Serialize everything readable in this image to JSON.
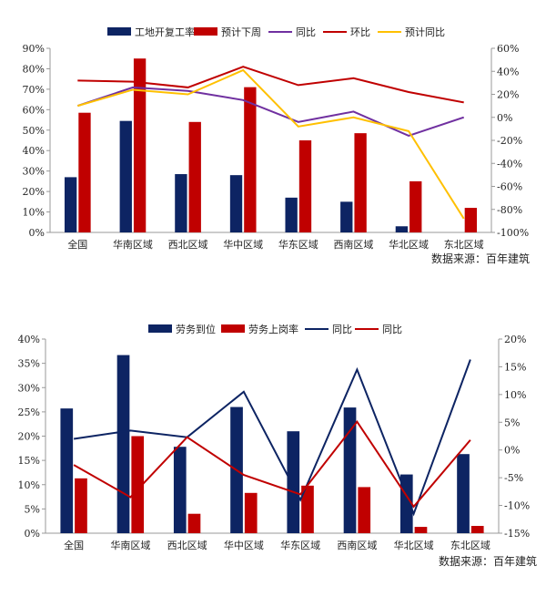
{
  "chart_data": [
    {
      "type": "bar",
      "categories": [
        "全国",
        "华南区域",
        "西北区域",
        "华中区域",
        "华东区域",
        "西南区域",
        "华北区域",
        "东北区域"
      ],
      "series": [
        {
          "name": "工地开复工率",
          "kind": "bar",
          "axis": "left",
          "color": "#0d2463",
          "values": [
            27,
            54.5,
            28.5,
            28,
            17,
            15,
            3,
            0
          ]
        },
        {
          "name": "预计下周",
          "kind": "bar",
          "axis": "left",
          "color": "#c00000",
          "values": [
            58.5,
            85,
            54,
            71,
            45,
            48.5,
            25,
            12
          ]
        },
        {
          "name": "同比",
          "kind": "line",
          "axis": "right",
          "color": "#7030a0",
          "values": [
            10,
            26,
            23,
            15,
            -4,
            5,
            -16,
            0
          ]
        },
        {
          "name": "环比",
          "kind": "line",
          "axis": "right",
          "color": "#c00000",
          "values": [
            32,
            31,
            26,
            44,
            28,
            34,
            22,
            13
          ]
        },
        {
          "name": "预计同比",
          "kind": "line",
          "axis": "right",
          "color": "#ffc000",
          "values": [
            10,
            24,
            20,
            41,
            -8,
            0,
            -12,
            -88
          ]
        }
      ],
      "ylim": [
        0,
        90
      ],
      "yticks": [
        "0%",
        "10%",
        "20%",
        "30%",
        "40%",
        "50%",
        "60%",
        "70%",
        "80%",
        "90%"
      ],
      "y2lim": [
        -100,
        60
      ],
      "y2ticks": [
        "-100%",
        "-80%",
        "-60%",
        "-40%",
        "-20%",
        "0%",
        "20%",
        "40%",
        "60%"
      ],
      "legend": "top",
      "source": "数据来源：百年建筑"
    },
    {
      "type": "bar",
      "categories": [
        "全国",
        "华南区域",
        "西北区域",
        "华中区域",
        "华东区域",
        "西南区域",
        "华北区域",
        "东北区域"
      ],
      "series": [
        {
          "name": "劳务到位",
          "kind": "bar",
          "axis": "left",
          "color": "#0d2463",
          "values": [
            25.7,
            36.7,
            17.8,
            26,
            21,
            25.9,
            12.1,
            16.3
          ]
        },
        {
          "name": "劳务上岗率",
          "kind": "bar",
          "axis": "left",
          "color": "#c00000",
          "values": [
            11.3,
            20,
            4,
            8.3,
            9.8,
            9.5,
            1.3,
            1.5
          ]
        },
        {
          "name": "同比",
          "kind": "line",
          "axis": "right",
          "color": "#0d2463",
          "values": [
            2,
            3.5,
            2.3,
            10.5,
            -9,
            14.5,
            -11.5,
            16.3
          ]
        },
        {
          "name": "同比",
          "kind": "line",
          "axis": "right",
          "color": "#c00000",
          "values": [
            -2.7,
            -8.5,
            2.3,
            -4.5,
            -8,
            5.1,
            -10.2,
            1.8
          ]
        }
      ],
      "ylim": [
        0,
        40
      ],
      "yticks": [
        "0%",
        "5%",
        "10%",
        "15%",
        "20%",
        "25%",
        "30%",
        "35%",
        "40%"
      ],
      "y2lim": [
        -15,
        20
      ],
      "y2ticks": [
        "-15%",
        "-10%",
        "-5%",
        "0%",
        "5%",
        "10%",
        "15%",
        "20%"
      ],
      "legend": "top",
      "source": "数据来源：百年建筑"
    }
  ]
}
